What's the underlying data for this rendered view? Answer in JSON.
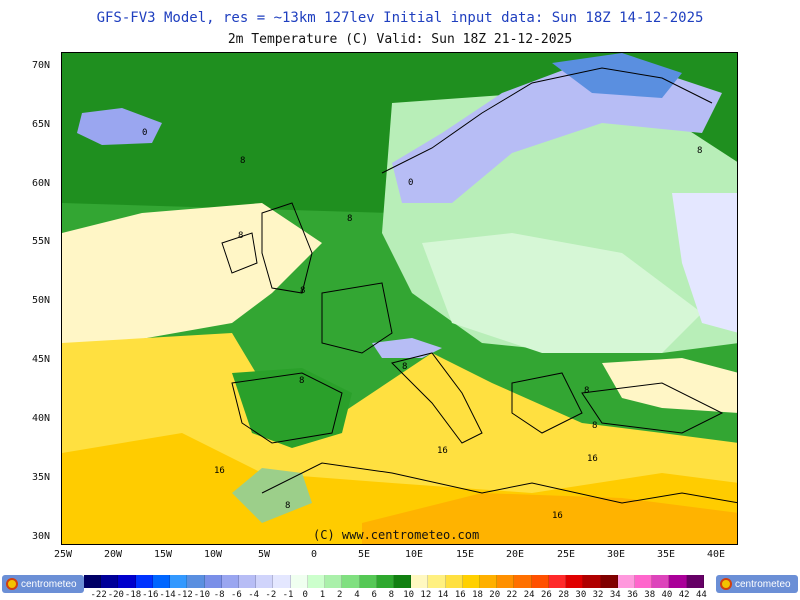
{
  "header": {
    "line1": "GFS-FV3 Model, res = ~13km 127lev    Initial input data: Sun 18Z 14-12-2025",
    "line2": "2m Temperature (C)  Valid: Sun 18Z 21-12-2025"
  },
  "map": {
    "lat_labels": [
      "70N",
      "65N",
      "60N",
      "55N",
      "50N",
      "45N",
      "40N",
      "35N",
      "30N"
    ],
    "lon_labels": [
      "25W",
      "20W",
      "15W",
      "10W",
      "5W",
      "0",
      "5E",
      "10E",
      "15E",
      "20E",
      "25E",
      "30E",
      "35E",
      "40E"
    ],
    "contour_labels": [
      "0",
      "8",
      "8",
      "8",
      "8",
      "8",
      "0",
      "8",
      "8",
      "8",
      "8",
      "16",
      "16",
      "16",
      "16",
      "8"
    ],
    "copyright": "(C) www.centrometeo.com"
  },
  "legend": {
    "tick_values": [
      "-22",
      "-20",
      "-18",
      "-16",
      "-14",
      "-12",
      "-10",
      "-8",
      "-6",
      "-4",
      "-2",
      "-1",
      "0",
      "1",
      "2",
      "4",
      "6",
      "8",
      "10",
      "12",
      "14",
      "16",
      "18",
      "20",
      "22",
      "24",
      "26",
      "28",
      "30",
      "32",
      "34",
      "36",
      "38",
      "40",
      "42",
      "44"
    ],
    "colors": [
      "#000066",
      "#000099",
      "#0000cc",
      "#0033ff",
      "#0066ff",
      "#3399ff",
      "#5a8fe0",
      "#7a8fe8",
      "#9aa6f0",
      "#b7bdf5",
      "#d0d4fb",
      "#e4e7ff",
      "#f0fff0",
      "#ccffcc",
      "#aaf0aa",
      "#80e080",
      "#55c855",
      "#2ea82e",
      "#118011",
      "#fff8c0",
      "#fff080",
      "#ffe040",
      "#ffd000",
      "#ffb000",
      "#ff9000",
      "#ff7000",
      "#ff5000",
      "#ff2a2a",
      "#e00000",
      "#b00000",
      "#800000",
      "#ff99dd",
      "#ff66cc",
      "#dd44bb",
      "#aa0099",
      "#660066"
    ],
    "logo_left": "centrometeo",
    "logo_right": "centrometeo"
  }
}
